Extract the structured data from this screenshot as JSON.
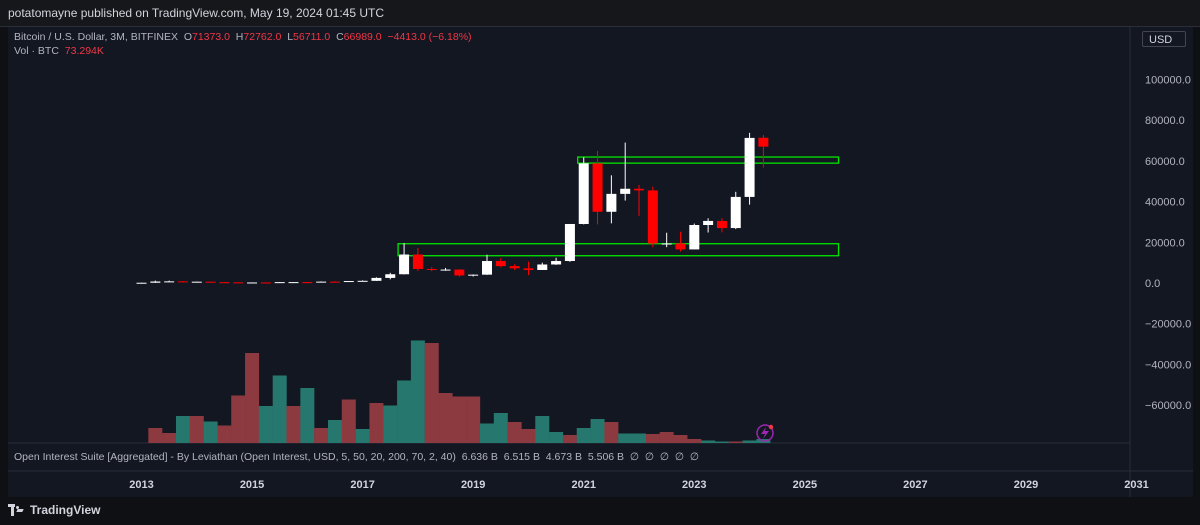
{
  "header": {
    "published": "potatomayne published on TradingView.com, May 19, 2024 01:45 UTC"
  },
  "legend": {
    "symbol": "Bitcoin / U.S. Dollar, 3M, BITFINEX",
    "o_label": "O",
    "o_value": "71373.0",
    "h_label": "H",
    "h_value": "72762.0",
    "l_label": "L",
    "l_value": "56711.0",
    "c_label": "C",
    "c_value": "66989.0",
    "change": "−4413.0 (−6.18%)",
    "vol_label": "Vol · BTC",
    "vol_value": "73.294K"
  },
  "currency_button": "USD",
  "indicator_legend": {
    "name": "Open Interest Suite [Aggregated] - By Leviathan (Open Interest, USD, 5, 50, 20, 200, 70, 2, 40)",
    "values": [
      "6.636 B",
      "6.515 B",
      "4.673 B",
      "5.506 B",
      "∅",
      "∅",
      "∅",
      "∅",
      "∅"
    ]
  },
  "footer": {
    "brand": "TradingView"
  },
  "colors": {
    "up": "#ffffff",
    "down": "#ff0000",
    "vol_up": "#26786f",
    "vol_down": "#8c3a40",
    "zone": "#00e600",
    "bg": "#131722"
  },
  "chart_data": {
    "type": "candlestick",
    "yticks": [
      100000,
      80000,
      60000,
      40000,
      20000,
      0,
      -20000,
      -40000,
      -60000
    ],
    "ytick_labels": [
      "100000.0",
      "80000.0",
      "60000.0",
      "40000.0",
      "20000.0",
      "0.0",
      "−20000.0",
      "−40000.0",
      "−60000.0"
    ],
    "xtick_labels": [
      "2013",
      "2015",
      "2017",
      "2019",
      "2021",
      "2023",
      "2025",
      "2027",
      "2029",
      "2031"
    ],
    "x_start_year": 2013,
    "candles": [
      {
        "o": 120,
        "h": 240,
        "l": 100,
        "c": 130
      },
      {
        "o": 130,
        "h": 1160,
        "l": 120,
        "c": 730
      },
      {
        "o": 730,
        "h": 1170,
        "l": 580,
        "c": 800
      },
      {
        "o": 800,
        "h": 1000,
        "l": 440,
        "c": 460
      },
      {
        "o": 460,
        "h": 680,
        "l": 370,
        "c": 640
      },
      {
        "o": 640,
        "h": 640,
        "l": 330,
        "c": 380
      },
      {
        "o": 380,
        "h": 480,
        "l": 310,
        "c": 320
      },
      {
        "o": 320,
        "h": 320,
        "l": 150,
        "c": 240
      },
      {
        "o": 240,
        "h": 300,
        "l": 200,
        "c": 260
      },
      {
        "o": 260,
        "h": 300,
        "l": 210,
        "c": 240
      },
      {
        "o": 240,
        "h": 420,
        "l": 240,
        "c": 420
      },
      {
        "o": 420,
        "h": 460,
        "l": 360,
        "c": 430
      },
      {
        "o": 430,
        "h": 450,
        "l": 350,
        "c": 420
      },
      {
        "o": 420,
        "h": 800,
        "l": 420,
        "c": 670
      },
      {
        "o": 670,
        "h": 780,
        "l": 460,
        "c": 610
      },
      {
        "o": 610,
        "h": 970,
        "l": 600,
        "c": 960
      },
      {
        "o": 960,
        "h": 1300,
        "l": 880,
        "c": 1070
      },
      {
        "o": 1070,
        "h": 2780,
        "l": 1020,
        "c": 2500
      },
      {
        "o": 2500,
        "h": 5000,
        "l": 1800,
        "c": 4300
      },
      {
        "o": 4300,
        "h": 19600,
        "l": 4200,
        "c": 14000
      },
      {
        "o": 14000,
        "h": 17200,
        "l": 5900,
        "c": 6900
      },
      {
        "o": 6900,
        "h": 7800,
        "l": 5800,
        "c": 6400
      },
      {
        "o": 6400,
        "h": 7400,
        "l": 6000,
        "c": 6600
      },
      {
        "o": 6600,
        "h": 6800,
        "l": 3100,
        "c": 3700
      },
      {
        "o": 3700,
        "h": 4200,
        "l": 3200,
        "c": 4100
      },
      {
        "o": 4100,
        "h": 13900,
        "l": 4000,
        "c": 10800
      },
      {
        "o": 10800,
        "h": 12300,
        "l": 7700,
        "c": 8300
      },
      {
        "o": 8300,
        "h": 9200,
        "l": 6400,
        "c": 7200
      },
      {
        "o": 7200,
        "h": 10500,
        "l": 3800,
        "c": 6400
      },
      {
        "o": 6400,
        "h": 10000,
        "l": 6400,
        "c": 9100
      },
      {
        "o": 9100,
        "h": 12400,
        "l": 8900,
        "c": 10800
      },
      {
        "o": 10800,
        "h": 29000,
        "l": 10400,
        "c": 29000
      },
      {
        "o": 29000,
        "h": 61800,
        "l": 28800,
        "c": 58800
      },
      {
        "o": 58800,
        "h": 64900,
        "l": 28800,
        "c": 35000
      },
      {
        "o": 35000,
        "h": 52900,
        "l": 29300,
        "c": 43800
      },
      {
        "o": 43800,
        "h": 69000,
        "l": 40500,
        "c": 46300
      },
      {
        "o": 46300,
        "h": 48200,
        "l": 33000,
        "c": 45500
      },
      {
        "o": 45500,
        "h": 47400,
        "l": 17600,
        "c": 19400
      },
      {
        "o": 19400,
        "h": 24700,
        "l": 17600,
        "c": 19400
      },
      {
        "o": 19400,
        "h": 25200,
        "l": 15500,
        "c": 16500
      },
      {
        "o": 16500,
        "h": 29200,
        "l": 16500,
        "c": 28500
      },
      {
        "o": 28500,
        "h": 31800,
        "l": 24800,
        "c": 30500
      },
      {
        "o": 30500,
        "h": 31900,
        "l": 24900,
        "c": 27000
      },
      {
        "o": 27000,
        "h": 44800,
        "l": 26500,
        "c": 42300
      },
      {
        "o": 42300,
        "h": 73800,
        "l": 38500,
        "c": 71300
      },
      {
        "o": 71373,
        "h": 72762,
        "l": 56711,
        "c": 66989
      }
    ],
    "volume_first_index": 1,
    "volume": [
      {
        "v": 0.3,
        "up": false
      },
      {
        "v": 0.2,
        "up": false
      },
      {
        "v": 0.54,
        "up": true
      },
      {
        "v": 0.54,
        "up": false
      },
      {
        "v": 0.43,
        "up": true
      },
      {
        "v": 0.35,
        "up": false
      },
      {
        "v": 0.95,
        "up": false
      },
      {
        "v": 1.8,
        "up": false
      },
      {
        "v": 0.74,
        "up": true
      },
      {
        "v": 1.35,
        "up": true
      },
      {
        "v": 0.74,
        "up": false
      },
      {
        "v": 1.1,
        "up": true
      },
      {
        "v": 0.3,
        "up": false
      },
      {
        "v": 0.46,
        "up": true
      },
      {
        "v": 0.87,
        "up": false
      },
      {
        "v": 0.28,
        "up": true
      },
      {
        "v": 0.8,
        "up": false
      },
      {
        "v": 0.75,
        "up": true
      },
      {
        "v": 1.25,
        "up": true
      },
      {
        "v": 2.05,
        "up": true
      },
      {
        "v": 2.0,
        "up": false
      },
      {
        "v": 1.0,
        "up": false
      },
      {
        "v": 0.93,
        "up": false
      },
      {
        "v": 0.93,
        "up": false
      },
      {
        "v": 0.39,
        "up": true
      },
      {
        "v": 0.6,
        "up": true
      },
      {
        "v": 0.42,
        "up": false
      },
      {
        "v": 0.28,
        "up": false
      },
      {
        "v": 0.54,
        "up": true
      },
      {
        "v": 0.22,
        "up": true
      },
      {
        "v": 0.16,
        "up": false
      },
      {
        "v": 0.3,
        "up": true
      },
      {
        "v": 0.48,
        "up": true
      },
      {
        "v": 0.42,
        "up": false
      },
      {
        "v": 0.19,
        "up": true
      },
      {
        "v": 0.19,
        "up": true
      },
      {
        "v": 0.18,
        "up": false
      },
      {
        "v": 0.22,
        "up": false
      },
      {
        "v": 0.16,
        "up": false
      },
      {
        "v": 0.08,
        "up": false
      },
      {
        "v": 0.05,
        "up": true
      },
      {
        "v": 0.03,
        "up": true
      },
      {
        "v": 0.03,
        "up": false
      },
      {
        "v": 0.05,
        "up": true
      },
      {
        "v": 0.08,
        "up": true
      }
    ],
    "zones": [
      {
        "name": "support-zone",
        "low": 13400,
        "high": 19300,
        "x_from_index": 19,
        "x_to_index": 50
      },
      {
        "name": "resistance-zone",
        "low": 58900,
        "high": 61900,
        "x_from_index": 32,
        "x_to_index": 50
      }
    ]
  }
}
